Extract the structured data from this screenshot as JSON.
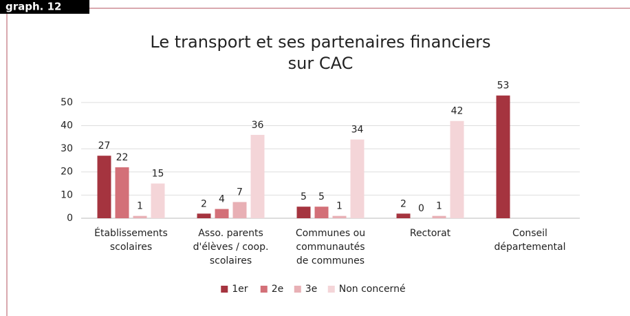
{
  "badge": "graph. 12",
  "chart_data": {
    "type": "bar",
    "title": [
      "Le transport et ses partenaires financiers",
      "sur CAC"
    ],
    "categories": [
      [
        "Établissements",
        "scolaires"
      ],
      [
        "Asso. parents",
        "d'élèves / coop.",
        "scolaires"
      ],
      [
        "Communes ou",
        "communautés",
        "de communes"
      ],
      [
        "Rectorat"
      ],
      [
        "Conseil",
        "départemental"
      ]
    ],
    "series": [
      {
        "name": "1er",
        "color": "#a5343f",
        "values": [
          27,
          2,
          5,
          2,
          53
        ]
      },
      {
        "name": "2e",
        "color": "#d37078",
        "values": [
          22,
          4,
          5,
          0,
          null
        ]
      },
      {
        "name": "3e",
        "color": "#e8b0b5",
        "values": [
          1,
          7,
          1,
          1,
          null
        ]
      },
      {
        "name": "Non concerné",
        "color": "#f4d5d8",
        "values": [
          15,
          36,
          34,
          42,
          null
        ]
      }
    ],
    "ylim": [
      0,
      55
    ],
    "yticks": [
      0,
      10,
      20,
      30,
      40,
      50
    ],
    "grid": true,
    "legend": "bottom"
  }
}
